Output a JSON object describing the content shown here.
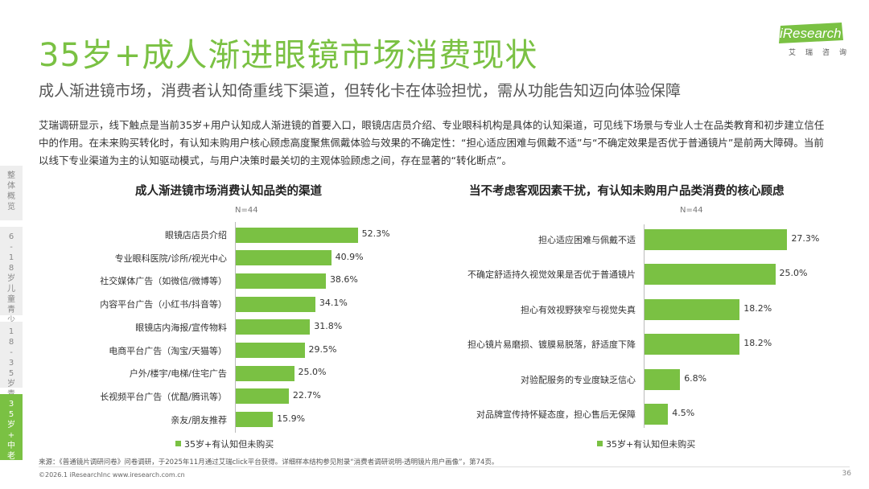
{
  "header": {
    "title": "35岁+成人渐进眼镜市场消费现状",
    "subtitle": "成人渐进镜市场，消费者认知倚重线下渠道，但转化卡在体验担忧，需从功能告知迈向体验保障",
    "description": "艾瑞调研显示，线下触点是当前35岁+用户认知成人渐进镜的首要入口，眼镜店店员介绍、专业眼科机构是具体的认知渠道，可见线下场景与专业人士在品类教育和初步建立信任中的作用。在未来购买转化时，有认知未购用户核心顾虑高度聚焦佩戴体验与效果的不确定性：“担心适应困难与佩戴不适”与“不确定效果是否优于普通镜片”是前两大障碍。当前以线下专业渠道为主的认知驱动模式，与用户决策时最关切的主观体验顾虑之间，存在显著的“转化断点”。"
  },
  "logo": {
    "text": "iResearch",
    "sub": "艾瑞咨询"
  },
  "sidebar": [
    {
      "label": "整体概览",
      "active": false
    },
    {
      "label": "6-18岁儿童青少年",
      "active": false
    },
    {
      "label": "18-35岁青年",
      "active": false
    },
    {
      "label": "35岁+中老年",
      "active": true
    }
  ],
  "chart_data": [
    {
      "type": "bar",
      "orientation": "horizontal",
      "title": "成人渐进镜市场消费认知品类的渠道",
      "sample": "N=44",
      "categories": [
        "眼镜店店员介绍",
        "专业眼科医院/诊所/视光中心",
        "社交媒体广告（如微信/微博等）",
        "内容平台广告（小红书/抖音等）",
        "眼镜店内海报/宣传物料",
        "电商平台广告（淘宝/天猫等）",
        "户外/楼宇/电梯/住宅广告",
        "长视频平台广告（优酷/腾讯等）",
        "亲友/朋友推荐"
      ],
      "values": [
        52.3,
        40.9,
        38.6,
        34.1,
        31.8,
        29.5,
        25.0,
        22.7,
        15.9
      ],
      "value_labels": [
        "52.3%",
        "40.9%",
        "38.6%",
        "34.1%",
        "31.8%",
        "29.5%",
        "25.0%",
        "22.7%",
        "15.9%"
      ],
      "legend": "35岁+有认知但未购买",
      "unit": "%"
    },
    {
      "type": "bar",
      "orientation": "horizontal",
      "title": "当不考虑客观因素干扰，有认知未购用户品类消费的核心顾虑",
      "sample": "N=44",
      "categories": [
        "担心适应困难与佩戴不适",
        "不确定舒适持久视觉效果是否优于普通镜片",
        "担心有效视野狭窄与视觉失真",
        "担心镜片易磨损、镀膜易脱落，舒适度下降",
        "对验配服务的专业度缺乏信心",
        "对品牌宣传持怀疑态度，担心售后无保障"
      ],
      "values": [
        27.3,
        25.0,
        18.2,
        18.2,
        6.8,
        4.5
      ],
      "value_labels": [
        "27.3%",
        "25.0%",
        "18.2%",
        "18.2%",
        "6.8%",
        "4.5%"
      ],
      "legend": "35岁+有认知但未购买",
      "unit": "%"
    }
  ],
  "footer": {
    "source": "来源：《普通镜片调研问卷》问卷调研，于2025年11月通过艾瑞click平台获得。详细样本结构参见附录“消费者调研说明-透明镜片用户画像”，第74页。",
    "copyright": "©2026.1 iResearchInc www.iresearch.com.cn",
    "page": "36"
  }
}
